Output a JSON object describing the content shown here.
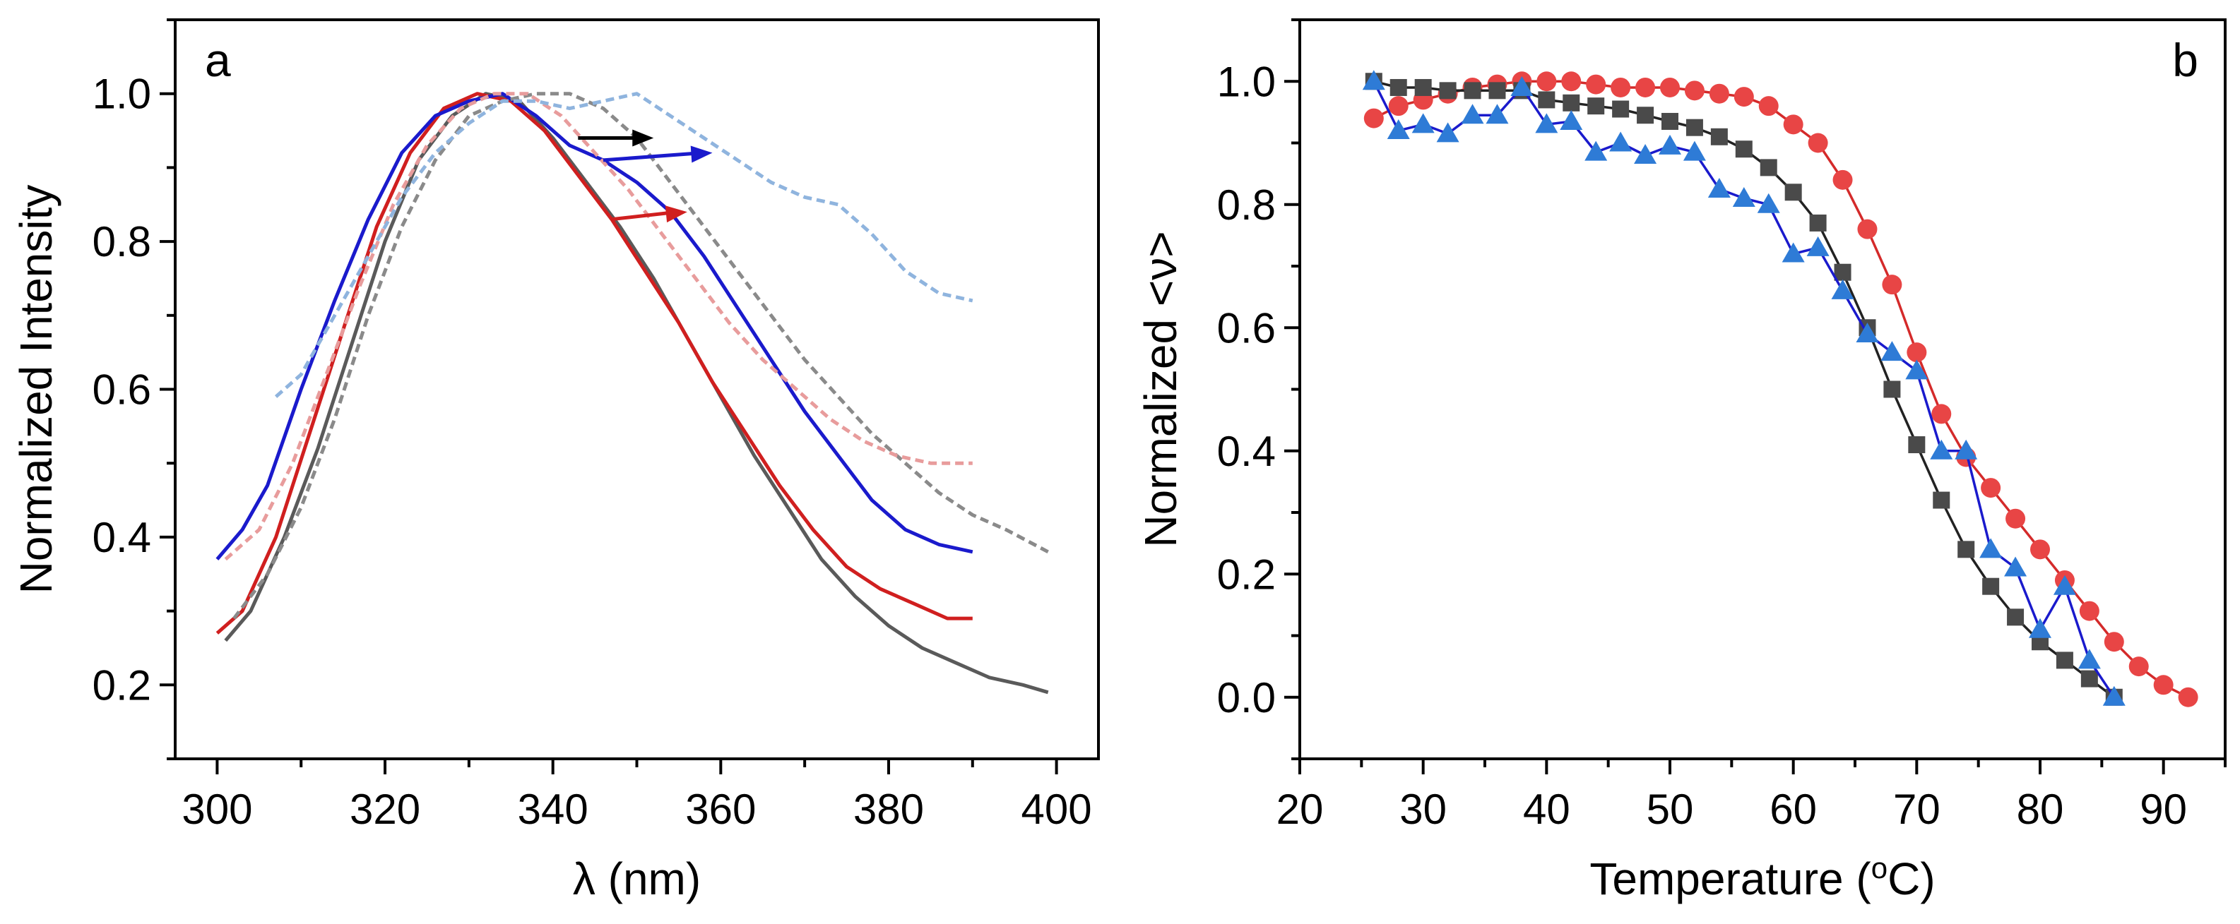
{
  "chart_data": [
    {
      "panel_label": "a",
      "type": "line",
      "title": "",
      "xlabel": "λ (nm)",
      "ylabel": "Normalized Intensity",
      "xlim": [
        295,
        405
      ],
      "ylim": [
        0.1,
        1.1
      ],
      "xticks": [
        300,
        320,
        340,
        360,
        380,
        400
      ],
      "yticks": [
        0.2,
        0.4,
        0.6,
        0.8,
        1.0
      ],
      "xtick_labels": [
        "300",
        "320",
        "340",
        "360",
        "380",
        "400"
      ],
      "ytick_labels": [
        "0.2",
        "0.4",
        "0.6",
        "0.8",
        "1.0"
      ],
      "grid": false,
      "series": [
        {
          "color": "#5a5a5a",
          "style": "solid",
          "x": [
            301,
            304,
            308,
            312,
            316,
            320,
            324,
            328,
            332,
            336,
            340,
            344,
            348,
            352,
            356,
            360,
            364,
            368,
            372,
            376,
            380,
            384,
            388,
            392,
            396,
            399
          ],
          "y": [
            0.26,
            0.3,
            0.4,
            0.52,
            0.66,
            0.8,
            0.91,
            0.97,
            1.0,
            0.99,
            0.94,
            0.88,
            0.82,
            0.75,
            0.67,
            0.59,
            0.51,
            0.44,
            0.37,
            0.32,
            0.28,
            0.25,
            0.23,
            0.21,
            0.2,
            0.19
          ]
        },
        {
          "color": "#d01f1f",
          "style": "solid",
          "x": [
            300,
            303,
            307,
            311,
            315,
            319,
            323,
            327,
            331,
            335,
            339,
            343,
            347,
            351,
            355,
            359,
            363,
            367,
            371,
            375,
            379,
            383,
            387,
            390
          ],
          "y": [
            0.27,
            0.3,
            0.4,
            0.54,
            0.68,
            0.82,
            0.92,
            0.98,
            1.0,
            0.99,
            0.95,
            0.89,
            0.83,
            0.76,
            0.69,
            0.61,
            0.54,
            0.47,
            0.41,
            0.36,
            0.33,
            0.31,
            0.29,
            0.29
          ]
        },
        {
          "color": "#1a1acc",
          "style": "solid",
          "x": [
            300,
            303,
            306,
            310,
            314,
            318,
            322,
            326,
            330,
            334,
            338,
            342,
            346,
            350,
            354,
            358,
            362,
            366,
            370,
            374,
            378,
            382,
            386,
            390
          ],
          "y": [
            0.37,
            0.41,
            0.47,
            0.6,
            0.72,
            0.83,
            0.92,
            0.97,
            0.99,
            1.0,
            0.97,
            0.93,
            0.91,
            0.88,
            0.84,
            0.78,
            0.71,
            0.64,
            0.57,
            0.51,
            0.45,
            0.41,
            0.39,
            0.38
          ]
        },
        {
          "color": "#8a8a8a",
          "style": "dashed",
          "x": [
            302,
            306,
            310,
            314,
            318,
            322,
            326,
            330,
            334,
            338,
            342,
            346,
            350,
            354,
            358,
            362,
            366,
            370,
            374,
            378,
            382,
            386,
            390,
            394,
            399
          ],
          "y": [
            0.29,
            0.35,
            0.44,
            0.56,
            0.7,
            0.82,
            0.91,
            0.97,
            0.99,
            1.0,
            1.0,
            0.98,
            0.94,
            0.88,
            0.82,
            0.76,
            0.7,
            0.64,
            0.59,
            0.54,
            0.5,
            0.46,
            0.43,
            0.41,
            0.38
          ]
        },
        {
          "color": "#e89c9c",
          "style": "dashed",
          "x": [
            301,
            305,
            309,
            313,
            317,
            321,
            325,
            329,
            333,
            337,
            341,
            345,
            349,
            353,
            357,
            361,
            365,
            369,
            373,
            377,
            381,
            385,
            388,
            390
          ],
          "y": [
            0.37,
            0.41,
            0.5,
            0.62,
            0.74,
            0.85,
            0.93,
            0.98,
            1.0,
            1.0,
            0.97,
            0.92,
            0.87,
            0.81,
            0.75,
            0.69,
            0.64,
            0.6,
            0.56,
            0.53,
            0.51,
            0.5,
            0.5,
            0.5
          ]
        },
        {
          "color": "#8fb4de",
          "style": "dashed",
          "x": [
            307,
            310,
            314,
            318,
            322,
            326,
            330,
            334,
            338,
            342,
            346,
            350,
            354,
            358,
            362,
            366,
            370,
            374,
            378,
            382,
            386,
            390
          ],
          "y": [
            0.59,
            0.62,
            0.7,
            0.78,
            0.86,
            0.92,
            0.96,
            0.99,
            0.99,
            0.98,
            0.99,
            1.0,
            0.97,
            0.94,
            0.91,
            0.88,
            0.86,
            0.85,
            0.81,
            0.76,
            0.73,
            0.72
          ]
        }
      ],
      "annotations": [
        {
          "type": "arrow",
          "color": "#000000",
          "x": [
            343,
            352
          ],
          "y": [
            0.94,
            0.94
          ]
        },
        {
          "type": "arrow",
          "color": "#1a1acc",
          "x": [
            346,
            359
          ],
          "y": [
            0.91,
            0.92
          ]
        },
        {
          "type": "arrow",
          "color": "#d01f1f",
          "x": [
            347,
            356
          ],
          "y": [
            0.83,
            0.84
          ]
        }
      ]
    },
    {
      "panel_label": "b",
      "type": "scatter",
      "title": "",
      "xlabel": "Temperature (°C)",
      "xlabel_main": "Temperature (",
      "xlabel_sup": "o",
      "xlabel_tail": "C)",
      "ylabel": "Normalized <ν>",
      "xlim": [
        20,
        95
      ],
      "ylim": [
        -0.1,
        1.1
      ],
      "xticks": [
        20,
        30,
        40,
        50,
        60,
        70,
        80,
        90
      ],
      "yticks": [
        0.0,
        0.2,
        0.4,
        0.6,
        0.8,
        1.0
      ],
      "xtick_labels": [
        "20",
        "30",
        "40",
        "50",
        "60",
        "70",
        "80",
        "90"
      ],
      "ytick_labels": [
        "0.0",
        "0.2",
        "0.4",
        "0.6",
        "0.8",
        "1.0"
      ],
      "grid": false,
      "series": [
        {
          "marker": "circle",
          "color": "#e84545",
          "line_color": "#d42a2a",
          "x": [
            26,
            28,
            30,
            32,
            34,
            36,
            38,
            40,
            42,
            44,
            46,
            48,
            50,
            52,
            54,
            56,
            58,
            60,
            62,
            64,
            66,
            68,
            70,
            72,
            74,
            76,
            78,
            80,
            82,
            84,
            86,
            88,
            90,
            92
          ],
          "y": [
            0.94,
            0.96,
            0.97,
            0.98,
            0.99,
            0.995,
            1.0,
            1.0,
            1.0,
            0.995,
            0.99,
            0.99,
            0.99,
            0.985,
            0.98,
            0.975,
            0.96,
            0.93,
            0.9,
            0.84,
            0.76,
            0.67,
            0.56,
            0.46,
            0.39,
            0.34,
            0.29,
            0.24,
            0.19,
            0.14,
            0.09,
            0.05,
            0.02,
            0.0
          ]
        },
        {
          "marker": "square",
          "color": "#4a4a4a",
          "line_color": "#222222",
          "x": [
            26,
            28,
            30,
            32,
            34,
            36,
            38,
            40,
            42,
            44,
            46,
            48,
            50,
            52,
            54,
            56,
            58,
            60,
            62,
            64,
            66,
            68,
            70,
            72,
            74,
            76,
            78,
            80,
            82,
            84,
            86
          ],
          "y": [
            1.0,
            0.99,
            0.99,
            0.985,
            0.985,
            0.985,
            0.985,
            0.97,
            0.965,
            0.96,
            0.955,
            0.945,
            0.935,
            0.925,
            0.91,
            0.89,
            0.86,
            0.82,
            0.77,
            0.69,
            0.6,
            0.5,
            0.41,
            0.32,
            0.24,
            0.18,
            0.13,
            0.09,
            0.06,
            0.03,
            0.0
          ]
        },
        {
          "marker": "triangle",
          "color": "#2e7bd6",
          "line_color": "#1a1acc",
          "x": [
            26,
            28,
            30,
            32,
            34,
            36,
            38,
            40,
            42,
            44,
            46,
            48,
            50,
            52,
            54,
            56,
            58,
            60,
            62,
            64,
            66,
            68,
            70,
            72,
            74,
            76,
            78,
            80,
            82,
            84,
            86
          ],
          "y": [
            1.0,
            0.92,
            0.93,
            0.915,
            0.945,
            0.945,
            0.99,
            0.93,
            0.935,
            0.885,
            0.9,
            0.88,
            0.895,
            0.885,
            0.825,
            0.81,
            0.8,
            0.72,
            0.73,
            0.66,
            0.59,
            0.56,
            0.53,
            0.4,
            0.4,
            0.24,
            0.21,
            0.11,
            0.18,
            0.06,
            0.0
          ]
        }
      ]
    }
  ]
}
